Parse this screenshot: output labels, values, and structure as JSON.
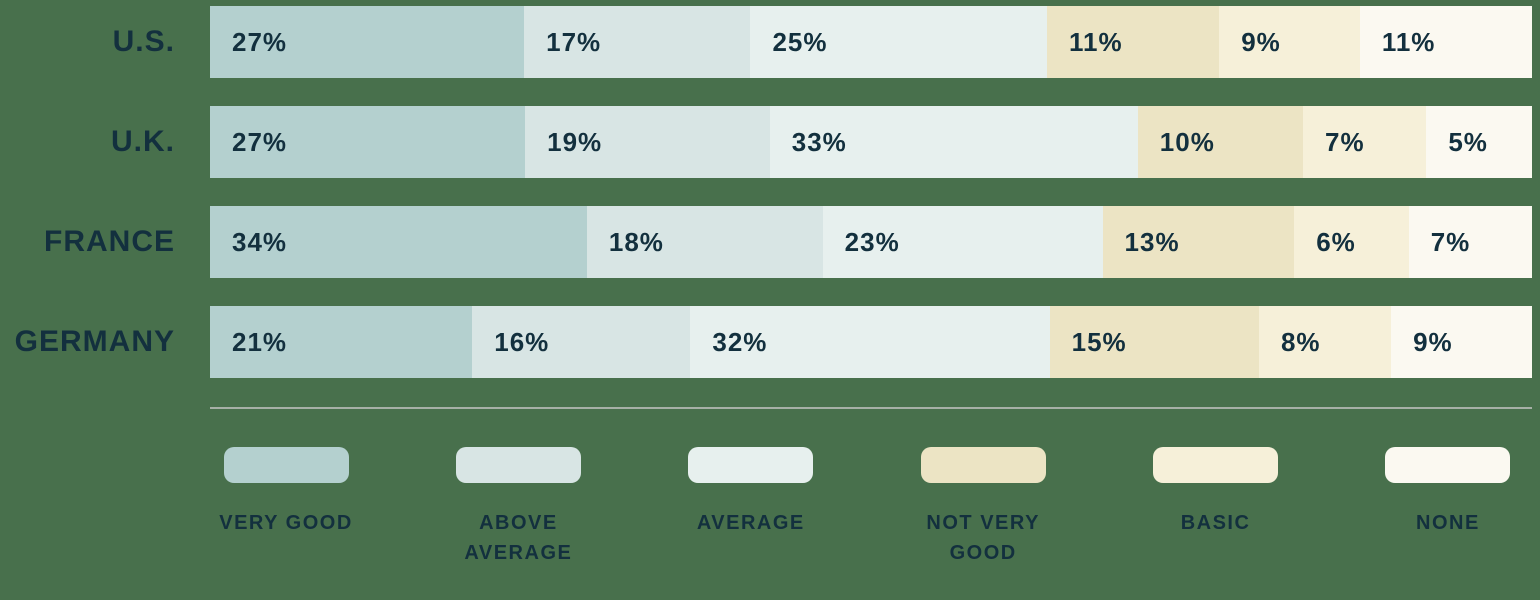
{
  "colors": {
    "background": "#48704c",
    "text": "#13303e",
    "divider": "#a6b0a6",
    "segments": {
      "very_good": "#b4d0cf",
      "above_average": "#d8e5e4",
      "average": "#e7f0ee",
      "not_very_good": "#ece4c4",
      "basic": "#f6f0d9",
      "none": "#fbf9f1"
    }
  },
  "chart_data": {
    "type": "bar",
    "orientation": "horizontal",
    "stacked": true,
    "categories": [
      "U.S.",
      "U.K.",
      "FRANCE",
      "GERMANY"
    ],
    "series": [
      {
        "name": "VERY GOOD",
        "color_key": "very_good",
        "values": [
          27,
          27,
          34,
          21
        ]
      },
      {
        "name": "ABOVE AVERAGE",
        "color_key": "above_average",
        "values": [
          17,
          19,
          18,
          16
        ]
      },
      {
        "name": "AVERAGE",
        "color_key": "average",
        "values": [
          25,
          33,
          23,
          32
        ]
      },
      {
        "name": "NOT VERY GOOD",
        "color_key": "not_very_good",
        "values": [
          11,
          10,
          13,
          15
        ]
      },
      {
        "name": "BASIC",
        "color_key": "basic",
        "values": [
          9,
          7,
          6,
          8
        ]
      },
      {
        "name": "NONE",
        "color_key": "none",
        "values": [
          11,
          5,
          7,
          9
        ]
      }
    ],
    "value_suffix": "%",
    "data_labels": "inside-left",
    "legend_position": "bottom",
    "grid": false,
    "axes_visible": false
  },
  "rows": [
    {
      "label": "U.S.",
      "segments": [
        {
          "value": 27,
          "display": "27%",
          "color_key": "very_good"
        },
        {
          "value": 17,
          "display": "17%",
          "color_key": "above_average"
        },
        {
          "value": 25,
          "display": "25%",
          "color_key": "average"
        },
        {
          "value": 11,
          "display": "11%",
          "color_key": "not_very_good"
        },
        {
          "value": 9,
          "display": "9%",
          "color_key": "basic"
        },
        {
          "value": 11,
          "display": "11%",
          "color_key": "none"
        }
      ]
    },
    {
      "label": "U.K.",
      "segments": [
        {
          "value": 27,
          "display": "27%",
          "color_key": "very_good"
        },
        {
          "value": 19,
          "display": "19%",
          "color_key": "above_average"
        },
        {
          "value": 33,
          "display": "33%",
          "color_key": "average"
        },
        {
          "value": 10,
          "display": "10%",
          "color_key": "not_very_good"
        },
        {
          "value": 7,
          "display": "7%",
          "color_key": "basic"
        },
        {
          "value": 5,
          "display": "5%",
          "color_key": "none"
        }
      ]
    },
    {
      "label": "FRANCE",
      "segments": [
        {
          "value": 34,
          "display": "34%",
          "color_key": "very_good"
        },
        {
          "value": 18,
          "display": "18%",
          "color_key": "above_average"
        },
        {
          "value": 23,
          "display": "23%",
          "color_key": "average"
        },
        {
          "value": 13,
          "display": "13%",
          "color_key": "not_very_good"
        },
        {
          "value": 6,
          "display": "6%",
          "color_key": "basic"
        },
        {
          "value": 7,
          "display": "7%",
          "color_key": "none"
        }
      ]
    },
    {
      "label": "GERMANY",
      "segments": [
        {
          "value": 21,
          "display": "21%",
          "color_key": "very_good"
        },
        {
          "value": 16,
          "display": "16%",
          "color_key": "above_average"
        },
        {
          "value": 32,
          "display": "32%",
          "color_key": "average"
        },
        {
          "value": 15,
          "display": "15%",
          "color_key": "not_very_good"
        },
        {
          "value": 8,
          "display": "8%",
          "color_key": "basic"
        },
        {
          "value": 9,
          "display": "9%",
          "color_key": "none"
        }
      ]
    }
  ],
  "legend": [
    {
      "label": "VERY GOOD",
      "color_key": "very_good"
    },
    {
      "label": "ABOVE AVERAGE",
      "color_key": "above_average"
    },
    {
      "label": "AVERAGE",
      "color_key": "average"
    },
    {
      "label": "NOT VERY GOOD",
      "color_key": "not_very_good"
    },
    {
      "label": "BASIC",
      "color_key": "basic"
    },
    {
      "label": "NONE",
      "color_key": "none"
    }
  ]
}
